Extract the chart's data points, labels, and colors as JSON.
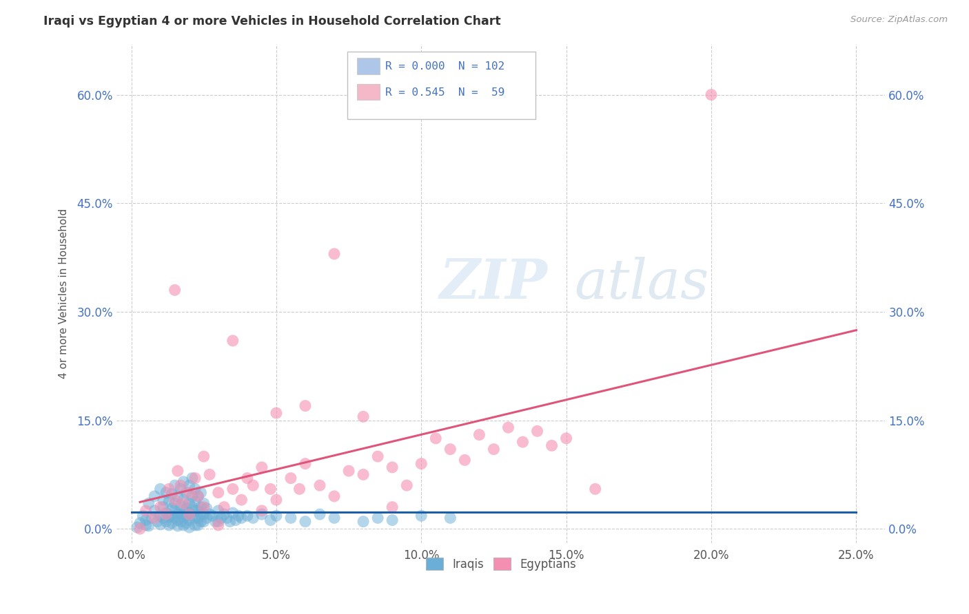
{
  "title": "Iraqi vs Egyptian 4 or more Vehicles in Household Correlation Chart",
  "source": "Source: ZipAtlas.com",
  "ylabel_label": "4 or more Vehicles in Household",
  "xlim": [
    -0.5,
    26.0
  ],
  "ylim": [
    -2.0,
    67.0
  ],
  "xtick_vals": [
    0.0,
    5.0,
    10.0,
    15.0,
    20.0,
    25.0
  ],
  "ytick_vals": [
    0.0,
    15.0,
    30.0,
    45.0,
    60.0
  ],
  "iraqis_color": "#6baed6",
  "iraqis_edge": "#6baed6",
  "egyptians_color": "#f48fb1",
  "egyptians_edge": "#f48fb1",
  "iraqis_line_color": "#1a5fa8",
  "egyptians_line_color": "#e0547a",
  "legend_box_color": "#aec6e8",
  "legend_pink_color": "#f4b8c8",
  "text_color": "#4472c4",
  "title_color": "#333333",
  "watermark_zip": "ZIP",
  "watermark_atlas": "atlas",
  "iraqis_points": [
    [
      0.3,
      0.8
    ],
    [
      0.5,
      1.2
    ],
    [
      0.6,
      0.4
    ],
    [
      0.7,
      1.5
    ],
    [
      0.8,
      2.5
    ],
    [
      0.9,
      1.0
    ],
    [
      1.0,
      1.8
    ],
    [
      1.0,
      0.6
    ],
    [
      1.1,
      3.0
    ],
    [
      1.1,
      1.5
    ],
    [
      1.2,
      2.2
    ],
    [
      1.2,
      1.0
    ],
    [
      1.3,
      1.6
    ],
    [
      1.3,
      0.5
    ],
    [
      1.4,
      2.8
    ],
    [
      1.4,
      1.8
    ],
    [
      1.4,
      0.8
    ],
    [
      1.5,
      3.5
    ],
    [
      1.5,
      2.5
    ],
    [
      1.5,
      1.5
    ],
    [
      1.6,
      2.0
    ],
    [
      1.6,
      1.2
    ],
    [
      1.6,
      0.4
    ],
    [
      1.7,
      3.2
    ],
    [
      1.7,
      2.0
    ],
    [
      1.7,
      1.0
    ],
    [
      1.8,
      4.0
    ],
    [
      1.8,
      2.5
    ],
    [
      1.8,
      1.5
    ],
    [
      1.8,
      0.5
    ],
    [
      1.9,
      2.8
    ],
    [
      1.9,
      1.8
    ],
    [
      1.9,
      0.8
    ],
    [
      2.0,
      3.5
    ],
    [
      2.0,
      2.2
    ],
    [
      2.0,
      1.2
    ],
    [
      2.0,
      0.2
    ],
    [
      2.1,
      4.5
    ],
    [
      2.1,
      3.0
    ],
    [
      2.1,
      1.8
    ],
    [
      2.2,
      3.8
    ],
    [
      2.2,
      2.5
    ],
    [
      2.2,
      1.5
    ],
    [
      2.2,
      0.5
    ],
    [
      2.3,
      2.5
    ],
    [
      2.3,
      1.5
    ],
    [
      2.3,
      0.5
    ],
    [
      2.4,
      3.0
    ],
    [
      2.4,
      2.0
    ],
    [
      2.4,
      1.0
    ],
    [
      2.5,
      3.5
    ],
    [
      2.5,
      2.0
    ],
    [
      2.5,
      1.0
    ],
    [
      2.6,
      2.8
    ],
    [
      2.6,
      1.5
    ],
    [
      2.7,
      2.0
    ],
    [
      2.8,
      1.8
    ],
    [
      2.9,
      1.0
    ],
    [
      3.0,
      2.5
    ],
    [
      3.0,
      1.0
    ],
    [
      3.1,
      1.5
    ],
    [
      3.2,
      2.0
    ],
    [
      3.3,
      1.5
    ],
    [
      3.4,
      1.0
    ],
    [
      3.5,
      2.2
    ],
    [
      3.6,
      1.2
    ],
    [
      3.7,
      1.8
    ],
    [
      3.8,
      1.5
    ],
    [
      4.0,
      1.8
    ],
    [
      4.2,
      1.5
    ],
    [
      4.5,
      2.0
    ],
    [
      4.8,
      1.2
    ],
    [
      5.0,
      1.8
    ],
    [
      5.5,
      1.5
    ],
    [
      6.0,
      1.0
    ],
    [
      6.5,
      2.0
    ],
    [
      7.0,
      1.5
    ],
    [
      8.0,
      1.0
    ],
    [
      8.5,
      1.5
    ],
    [
      9.0,
      1.2
    ],
    [
      10.0,
      1.8
    ],
    [
      11.0,
      1.5
    ],
    [
      0.2,
      0.2
    ],
    [
      0.4,
      1.8
    ],
    [
      0.5,
      0.5
    ],
    [
      0.6,
      3.5
    ],
    [
      0.8,
      4.5
    ],
    [
      1.0,
      5.5
    ],
    [
      1.1,
      4.0
    ],
    [
      1.2,
      5.0
    ],
    [
      1.3,
      3.8
    ],
    [
      1.4,
      4.8
    ],
    [
      1.5,
      6.0
    ],
    [
      1.6,
      4.5
    ],
    [
      1.7,
      5.5
    ],
    [
      1.8,
      6.5
    ],
    [
      1.9,
      5.0
    ],
    [
      2.0,
      6.0
    ],
    [
      2.1,
      7.0
    ],
    [
      2.2,
      5.5
    ],
    [
      2.3,
      4.5
    ],
    [
      2.4,
      5.0
    ]
  ],
  "egyptians_points": [
    [
      0.3,
      0.0
    ],
    [
      0.5,
      2.5
    ],
    [
      0.8,
      1.5
    ],
    [
      1.0,
      3.0
    ],
    [
      1.2,
      2.0
    ],
    [
      1.3,
      5.5
    ],
    [
      1.5,
      4.0
    ],
    [
      1.6,
      8.0
    ],
    [
      1.7,
      6.0
    ],
    [
      1.8,
      3.5
    ],
    [
      2.0,
      5.0
    ],
    [
      2.0,
      2.0
    ],
    [
      2.2,
      7.0
    ],
    [
      2.3,
      4.5
    ],
    [
      2.5,
      3.0
    ],
    [
      2.5,
      10.0
    ],
    [
      2.7,
      7.5
    ],
    [
      3.0,
      5.0
    ],
    [
      3.2,
      3.0
    ],
    [
      3.5,
      5.5
    ],
    [
      3.8,
      4.0
    ],
    [
      4.0,
      7.0
    ],
    [
      4.2,
      6.0
    ],
    [
      4.5,
      8.5
    ],
    [
      4.8,
      5.5
    ],
    [
      5.0,
      4.0
    ],
    [
      5.5,
      7.0
    ],
    [
      5.8,
      5.5
    ],
    [
      6.0,
      9.0
    ],
    [
      6.5,
      6.0
    ],
    [
      7.0,
      4.5
    ],
    [
      7.5,
      8.0
    ],
    [
      8.0,
      7.5
    ],
    [
      8.5,
      10.0
    ],
    [
      9.0,
      8.5
    ],
    [
      9.5,
      6.0
    ],
    [
      10.0,
      9.0
    ],
    [
      10.5,
      12.5
    ],
    [
      11.0,
      11.0
    ],
    [
      11.5,
      9.5
    ],
    [
      12.0,
      13.0
    ],
    [
      12.5,
      11.0
    ],
    [
      13.0,
      14.0
    ],
    [
      13.5,
      12.0
    ],
    [
      14.0,
      13.5
    ],
    [
      14.5,
      11.5
    ],
    [
      15.0,
      12.5
    ],
    [
      1.5,
      33.0
    ],
    [
      3.5,
      26.0
    ],
    [
      7.0,
      38.0
    ],
    [
      16.0,
      5.5
    ],
    [
      20.0,
      60.0
    ],
    [
      5.0,
      16.0
    ],
    [
      9.0,
      3.0
    ],
    [
      3.0,
      0.5
    ],
    [
      6.0,
      17.0
    ],
    [
      8.0,
      15.5
    ],
    [
      4.5,
      2.5
    ]
  ]
}
